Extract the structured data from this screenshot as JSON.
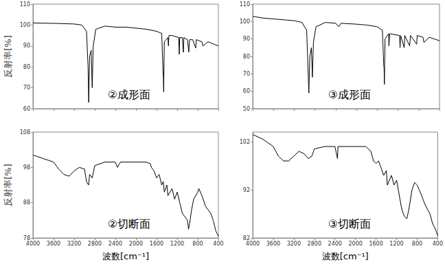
{
  "chart_data": [
    {
      "type": "line",
      "title": "②成形面",
      "ylabel": "反射率[%]",
      "xlim": [
        4000,
        400
      ],
      "xticks": [
        4000,
        3600,
        3200,
        2800,
        2400,
        2000,
        1600,
        1200,
        800,
        400
      ],
      "ylim": [
        60,
        110
      ],
      "yticks": [
        60,
        70,
        80,
        90,
        100,
        110
      ],
      "grid": false,
      "tick_labels": "y",
      "color": "#000000",
      "x": [
        4000,
        3600,
        3200,
        3050,
        2960,
        2930,
        2918,
        2900,
        2870,
        2850,
        2830,
        2780,
        2600,
        2400,
        2200,
        2000,
        1800,
        1700,
        1600,
        1500,
        1475,
        1468,
        1462,
        1450,
        1380,
        1370,
        1360,
        1300,
        1170,
        1160,
        1150,
        1100,
        1080,
        1070,
        1000,
        975,
        960,
        900,
        840,
        830,
        720,
        700,
        600,
        500,
        400
      ],
      "values": [
        101,
        100.8,
        100.5,
        100,
        97,
        80,
        63,
        85,
        88,
        70,
        90,
        98,
        99.5,
        99,
        99,
        98.5,
        98,
        97.5,
        97,
        96,
        78,
        75,
        68,
        92,
        94,
        90,
        95,
        95,
        94,
        86,
        94,
        94,
        87,
        94,
        93,
        87,
        93,
        93,
        89,
        93,
        92,
        90,
        92,
        91,
        90
      ]
    },
    {
      "type": "line",
      "title": "③成形面",
      "xlim": [
        4000,
        400
      ],
      "xticks": [
        4000,
        3600,
        3200,
        2800,
        2400,
        2000,
        1600,
        1200,
        800,
        400
      ],
      "ylim": [
        50,
        110
      ],
      "yticks": [
        50,
        60,
        70,
        80,
        90,
        100,
        110
      ],
      "grid": false,
      "tick_labels": "y",
      "color": "#000000",
      "x": [
        4000,
        3800,
        3600,
        3400,
        3200,
        3050,
        2960,
        2918,
        2900,
        2870,
        2850,
        2830,
        2780,
        2600,
        2400,
        2340,
        2300,
        2000,
        1800,
        1600,
        1500,
        1475,
        1468,
        1462,
        1450,
        1380,
        1375,
        1360,
        1170,
        1160,
        1150,
        1080,
        1070,
        975,
        960,
        840,
        830,
        720,
        700,
        600,
        400
      ],
      "values": [
        103,
        102,
        101.5,
        101,
        100.5,
        99.5,
        95,
        59,
        80,
        85,
        68,
        88,
        97,
        99.5,
        99,
        97,
        99,
        98.5,
        98,
        97,
        95,
        75,
        73,
        64,
        90,
        93,
        86,
        93,
        92,
        85,
        92,
        85,
        92,
        86,
        92,
        87,
        92,
        91,
        88,
        91,
        89
      ]
    },
    {
      "type": "line",
      "title": "②切断面",
      "ylabel": "反射率[%]",
      "xlabel": "波数[cm⁻¹]",
      "xlim": [
        4000,
        400
      ],
      "xticks": [
        4000,
        3600,
        3200,
        2800,
        2400,
        2000,
        1600,
        1200,
        800,
        400
      ],
      "ylim": [
        78,
        108
      ],
      "yticks": [
        78,
        88,
        98,
        108
      ],
      "grid": false,
      "color": "#000000",
      "x": [
        4000,
        3800,
        3600,
        3500,
        3400,
        3300,
        3200,
        3100,
        3000,
        2960,
        2920,
        2900,
        2850,
        2800,
        2600,
        2400,
        2360,
        2300,
        2000,
        1800,
        1720,
        1700,
        1650,
        1600,
        1550,
        1500,
        1470,
        1450,
        1400,
        1380,
        1300,
        1250,
        1200,
        1150,
        1100,
        1050,
        1000,
        980,
        960,
        920,
        880,
        800,
        780,
        720,
        650,
        600,
        550,
        500,
        450,
        400
      ],
      "values": [
        101.5,
        100.5,
        99.5,
        97.5,
        96,
        95.5,
        97,
        98,
        97.5,
        94,
        93,
        96,
        95,
        98.5,
        99.5,
        99.5,
        98,
        99.5,
        99.5,
        99.5,
        99,
        98,
        97,
        95,
        96,
        93,
        94,
        91,
        93,
        90,
        92,
        89,
        91,
        88,
        85,
        84,
        83,
        80.5,
        82,
        86,
        89,
        91,
        92,
        90,
        87,
        86,
        85,
        83,
        80,
        78.5
      ]
    },
    {
      "type": "line",
      "title": "③切断面",
      "xlabel": "波数[cm⁻¹]",
      "xlim": [
        4000,
        400
      ],
      "xticks": [
        4000,
        3600,
        3200,
        2800,
        2400,
        2000,
        1600,
        1200,
        800,
        400
      ],
      "ylim": [
        82,
        104
      ],
      "yticks": [
        82,
        92,
        102
      ],
      "grid": false,
      "color": "#000000",
      "x": [
        4000,
        3800,
        3600,
        3500,
        3400,
        3300,
        3200,
        3100,
        3000,
        2920,
        2850,
        2800,
        2600,
        2400,
        2350,
        2340,
        2000,
        1800,
        1700,
        1650,
        1600,
        1550,
        1500,
        1450,
        1400,
        1380,
        1300,
        1250,
        1200,
        1150,
        1100,
        1050,
        1000,
        960,
        900,
        850,
        800,
        720,
        650,
        600,
        550,
        500,
        450,
        400
      ],
      "values": [
        103.5,
        102.5,
        101,
        99,
        98,
        98,
        99,
        100,
        99.5,
        98.5,
        99,
        100.5,
        101,
        101,
        98.5,
        101,
        101,
        101,
        100,
        98,
        97.5,
        98,
        96.5,
        95,
        96,
        93,
        95,
        93,
        94,
        91,
        88,
        86.5,
        86,
        88,
        92,
        93.5,
        93,
        91,
        89,
        88,
        87,
        85,
        84,
        82.5
      ]
    }
  ]
}
